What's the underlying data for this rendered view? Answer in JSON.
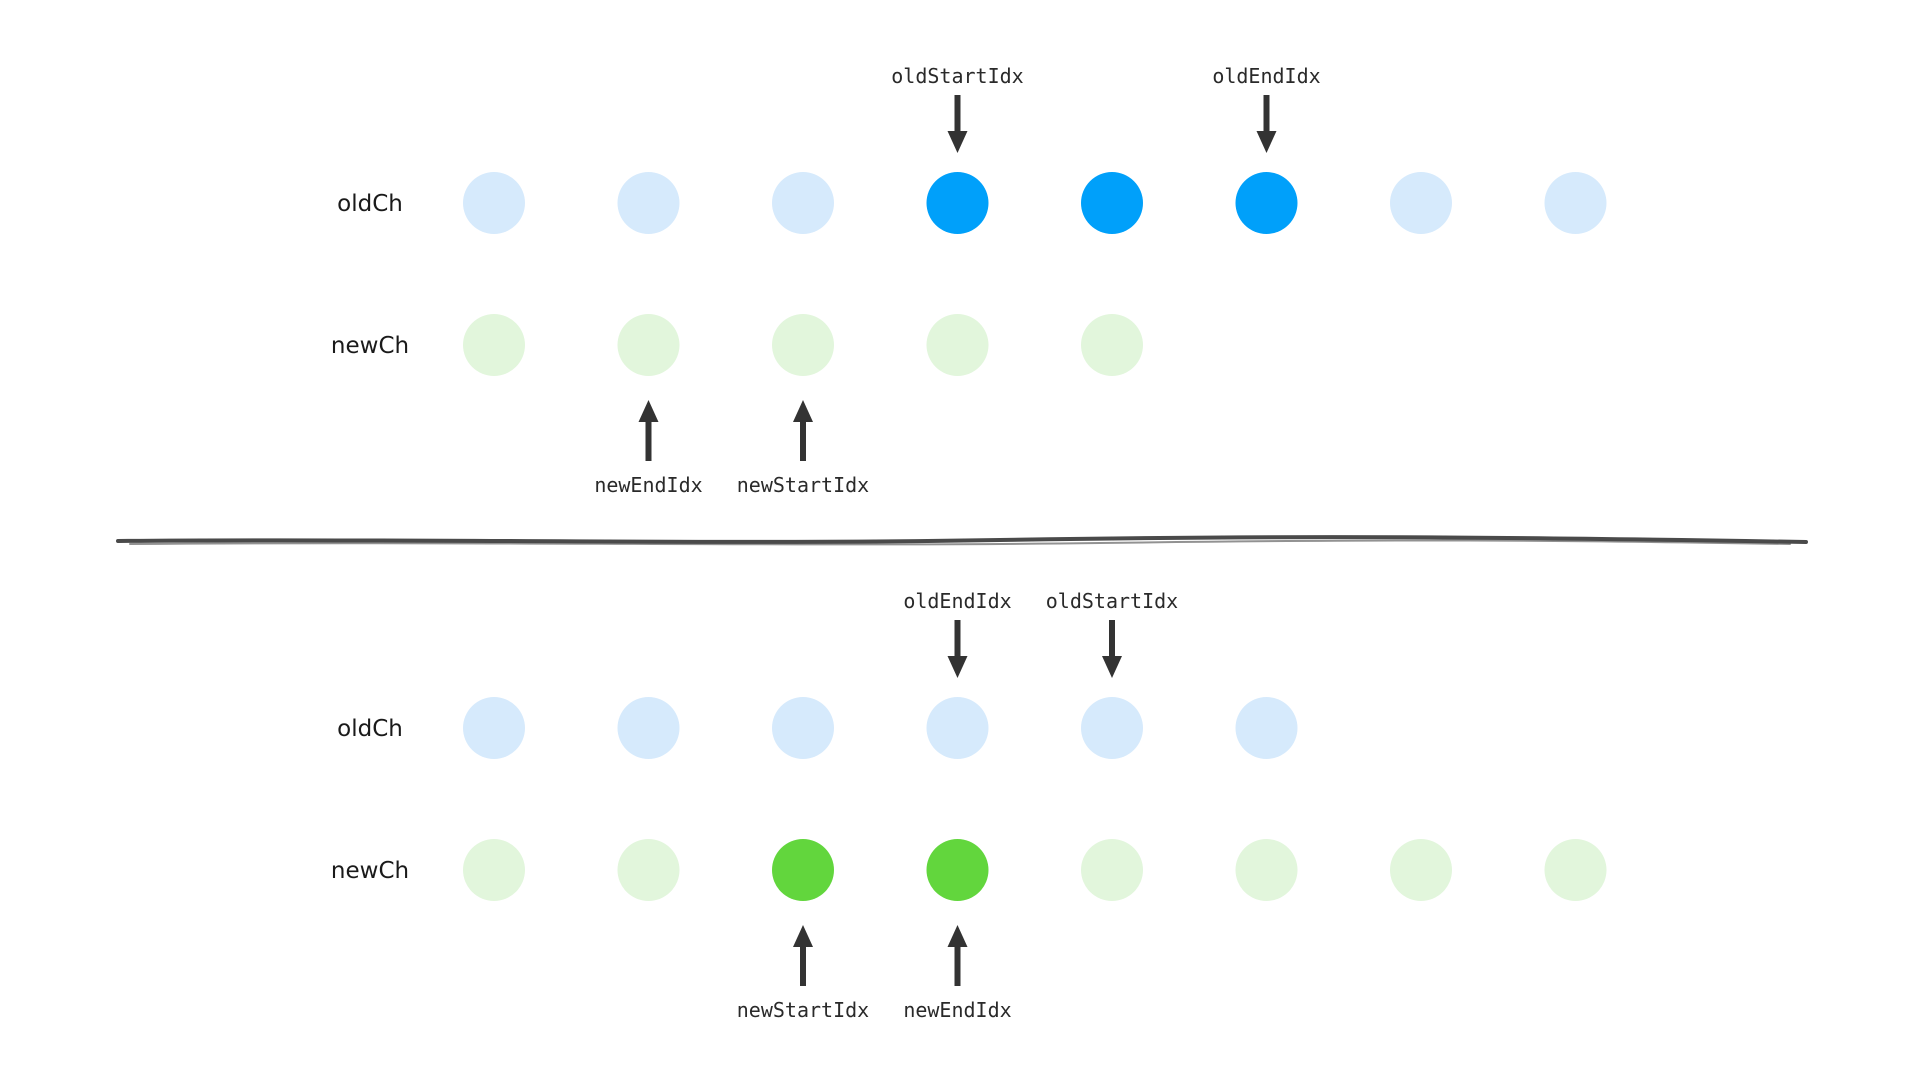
{
  "colors": {
    "old_node": "#d6eafc",
    "old_node_active": "#00a0fa",
    "new_node": "#e2f6dc",
    "new_node_active": "#62d63d",
    "arrow": "#333333",
    "divider": "#4a4a4a"
  },
  "panels": [
    {
      "old_row": {
        "label": "oldCh",
        "nodes": [
          {
            "index": 0,
            "active": false
          },
          {
            "index": 1,
            "active": false
          },
          {
            "index": 2,
            "active": false
          },
          {
            "index": 3,
            "active": true
          },
          {
            "index": 4,
            "active": true
          },
          {
            "index": 5,
            "active": true
          },
          {
            "index": 6,
            "active": false
          },
          {
            "index": 7,
            "active": false
          }
        ],
        "pointers": [
          {
            "label": "oldStartIdx",
            "index": 3
          },
          {
            "label": "oldEndIdx",
            "index": 5
          }
        ]
      },
      "new_row": {
        "label": "newCh",
        "nodes": [
          {
            "index": 0,
            "active": false
          },
          {
            "index": 1,
            "active": false
          },
          {
            "index": 2,
            "active": false
          },
          {
            "index": 3,
            "active": false
          },
          {
            "index": 4,
            "active": false
          }
        ],
        "pointers": [
          {
            "label": "newEndIdx",
            "index": 1
          },
          {
            "label": "newStartIdx",
            "index": 2
          }
        ]
      }
    },
    {
      "old_row": {
        "label": "oldCh",
        "nodes": [
          {
            "index": 0,
            "active": false
          },
          {
            "index": 1,
            "active": false
          },
          {
            "index": 2,
            "active": false
          },
          {
            "index": 3,
            "active": false
          },
          {
            "index": 4,
            "active": false
          },
          {
            "index": 5,
            "active": false
          }
        ],
        "pointers": [
          {
            "label": "oldEndIdx",
            "index": 3
          },
          {
            "label": "oldStartIdx",
            "index": 4
          }
        ]
      },
      "new_row": {
        "label": "newCh",
        "nodes": [
          {
            "index": 0,
            "active": false
          },
          {
            "index": 1,
            "active": false
          },
          {
            "index": 2,
            "active": true
          },
          {
            "index": 3,
            "active": true
          },
          {
            "index": 4,
            "active": false
          },
          {
            "index": 5,
            "active": false
          },
          {
            "index": 6,
            "active": false
          },
          {
            "index": 7,
            "active": false
          }
        ],
        "pointers": [
          {
            "label": "newStartIdx",
            "index": 2
          },
          {
            "label": "newEndIdx",
            "index": 3
          }
        ]
      }
    }
  ]
}
